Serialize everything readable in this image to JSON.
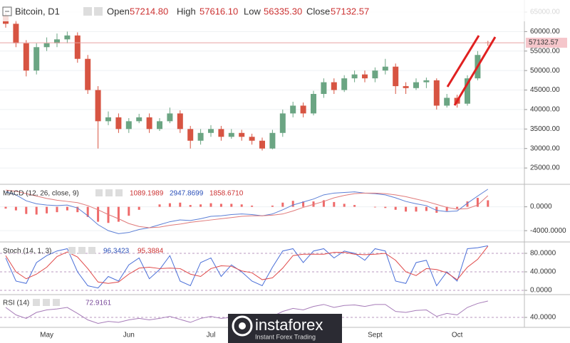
{
  "chart_data": [
    {
      "type": "candlestick",
      "title": "Bitcoin, D1",
      "ohlc": [
        {
          "name": "Open",
          "label": "57214.80"
        },
        {
          "name": "High",
          "label": "57616.10"
        },
        {
          "name": "Low",
          "label": "56335.30"
        },
        {
          "name": "Close",
          "label": "57132.57"
        }
      ],
      "last_label": "57132.57",
      "categories": [
        null,
        null,
        null,
        null,
        "May",
        null,
        null,
        null,
        null,
        null,
        null,
        null,
        "Jun",
        null,
        null,
        null,
        null,
        null,
        null,
        null,
        "Jul",
        null,
        null,
        null,
        null,
        null,
        null,
        null,
        null,
        null,
        null,
        null,
        null,
        null,
        null,
        null,
        "Sept",
        null,
        null,
        null,
        null,
        null,
        null,
        null,
        "Oct",
        null,
        null,
        null
      ],
      "open": [
        64000,
        62000,
        57000,
        50000,
        56000,
        57000,
        58000,
        59000,
        53000,
        45000,
        37000,
        38000,
        35000,
        37000,
        38000,
        35000,
        37000,
        39000,
        35000,
        32000,
        34000,
        35000,
        33000,
        34000,
        33000,
        32000,
        30000,
        34000,
        39000,
        41000,
        39000,
        44000,
        47000,
        45000,
        48000,
        49000,
        48000,
        50000,
        51000,
        46000,
        45500,
        47000,
        47500,
        41000,
        43000,
        41500,
        48000,
        57214.8
      ],
      "high": [
        64800,
        63000,
        57800,
        57000,
        58500,
        59500,
        60000,
        59800,
        54000,
        46000,
        39500,
        39000,
        37800,
        38900,
        39000,
        37800,
        40500,
        39800,
        35800,
        35000,
        36000,
        35800,
        35000,
        34800,
        33800,
        32800,
        34800,
        40000,
        42000,
        41800,
        44800,
        48000,
        48000,
        48800,
        50000,
        50000,
        50800,
        53000,
        51800,
        47000,
        48000,
        48200,
        48000,
        44000,
        43800,
        48800,
        55000,
        57616.1
      ],
      "low": [
        61000,
        56000,
        48500,
        49000,
        55000,
        56000,
        57000,
        52000,
        44000,
        30000,
        36000,
        34000,
        34000,
        36500,
        34000,
        34500,
        36500,
        34000,
        30000,
        31000,
        33000,
        32000,
        32500,
        32000,
        31000,
        29500,
        29800,
        33000,
        38000,
        38000,
        38500,
        43000,
        44000,
        44500,
        47000,
        47000,
        47000,
        49000,
        44000,
        44000,
        45000,
        45500,
        40000,
        40500,
        40500,
        41000,
        47500,
        56335.3
      ],
      "close": [
        62000,
        57000,
        50000,
        56000,
        57000,
        58000,
        59000,
        53000,
        45000,
        37000,
        38000,
        35000,
        37000,
        38000,
        35000,
        37000,
        39000,
        35000,
        32000,
        34000,
        35000,
        33000,
        34000,
        33000,
        32000,
        30000,
        34000,
        39000,
        41000,
        39000,
        44000,
        47000,
        45000,
        48000,
        49000,
        48000,
        50000,
        51000,
        46000,
        45500,
        47000,
        47500,
        41000,
        43000,
        41500,
        48000,
        54000,
        57132.57
      ],
      "up_color": "#6ba583",
      "down_color": "#d75442",
      "ylim": [
        21000,
        68100
      ],
      "yticks": [
        {
          "value": 25000,
          "label": "25000.00"
        },
        {
          "value": 30000,
          "label": "30000.00"
        },
        {
          "value": 35000,
          "label": "35000.00"
        },
        {
          "value": 40000,
          "label": "40000.00"
        },
        {
          "value": 45000,
          "label": "45000.00"
        },
        {
          "value": 50000,
          "label": "50000.00"
        },
        {
          "value": 55000,
          "label": "55000.00"
        },
        {
          "value": 60000,
          "label": "60000.00"
        },
        {
          "value": 65000,
          "label": "65000.00"
        }
      ],
      "grid": true
    },
    {
      "type": "line",
      "title": "MACD (12, 26, close, 9)",
      "series": [
        {
          "style": "histogram",
          "color": "#ef6a6a",
          "legend_label": "1089.1989",
          "values": [
            -300,
            -600,
            -1200,
            -1300,
            -1100,
            -900,
            -600,
            -900,
            -1700,
            -2500,
            -2700,
            -2500,
            -1500,
            -500,
            0,
            400,
            600,
            700,
            300,
            400,
            600,
            500,
            500,
            400,
            200,
            0,
            200,
            700,
            1000,
            900,
            900,
            1100,
            800,
            500,
            300,
            0,
            -100,
            -200,
            -500,
            -800,
            -800,
            -700,
            -1000,
            -700,
            -300,
            900,
            1500,
            1089.1989
          ]
        },
        {
          "style": "line",
          "color": "#5b7fd6",
          "legend_label": "2947.8699",
          "values": [
            2500,
            2000,
            1000,
            500,
            300,
            200,
            300,
            -200,
            -1500,
            -3000,
            -4000,
            -4500,
            -4300,
            -3800,
            -3500,
            -3000,
            -2500,
            -2200,
            -2300,
            -2000,
            -1600,
            -1500,
            -1300,
            -1200,
            -1300,
            -1500,
            -1200,
            -500,
            300,
            800,
            1300,
            2000,
            2300,
            2400,
            2500,
            2300,
            2200,
            2000,
            1500,
            900,
            500,
            200,
            -600,
            -800,
            -700,
            600,
            1800,
            2947.8699
          ]
        },
        {
          "style": "line",
          "color": "#e07a7a",
          "legend_label": "1858.6710",
          "values": [
            2800,
            2600,
            2200,
            1800,
            1400,
            1100,
            900,
            700,
            200,
            -500,
            -1300,
            -2000,
            -2800,
            -3300,
            -3500,
            -3400,
            -3100,
            -2900,
            -2600,
            -2400,
            -2200,
            -2000,
            -1800,
            -1600,
            -1500,
            -1500,
            -1400,
            -1200,
            -700,
            -100,
            400,
            900,
            1500,
            1900,
            2200,
            2300,
            2300,
            2200,
            2000,
            1700,
            1300,
            900,
            400,
            -100,
            -400,
            -300,
            300,
            1858.671
          ]
        }
      ],
      "ylim": [
        -5650,
        3530
      ],
      "yticks": [
        {
          "value": -4000,
          "label": "-4000.0000"
        },
        {
          "value": 0,
          "label": "0.0000"
        }
      ]
    },
    {
      "type": "line",
      "title": "Stoch (14, 1, 3)",
      "band": [
        20,
        80
      ],
      "band_color": "#d3aed6",
      "series": [
        {
          "style": "line",
          "color": "#4a6fd8",
          "legend_label": "96.3423",
          "values": [
            70,
            20,
            15,
            60,
            75,
            85,
            90,
            40,
            10,
            5,
            30,
            20,
            55,
            70,
            25,
            45,
            75,
            20,
            10,
            60,
            70,
            30,
            55,
            40,
            20,
            10,
            50,
            85,
            90,
            60,
            85,
            90,
            70,
            85,
            80,
            65,
            90,
            85,
            20,
            15,
            60,
            65,
            10,
            40,
            20,
            90,
            92,
            96.3423
          ]
        },
        {
          "style": "line",
          "color": "#e04848",
          "legend_label": "95.3884",
          "values": [
            75,
            40,
            25,
            35,
            50,
            73,
            83,
            72,
            47,
            18,
            15,
            18,
            35,
            48,
            50,
            47,
            48,
            47,
            35,
            30,
            47,
            53,
            52,
            42,
            38,
            23,
            27,
            48,
            75,
            78,
            78,
            78,
            82,
            82,
            78,
            77,
            78,
            80,
            65,
            40,
            32,
            47,
            45,
            38,
            23,
            50,
            67,
            95.3884
          ]
        }
      ],
      "ylim": [
        -7.7,
        101.5
      ],
      "yticks": [
        {
          "value": 0,
          "label": "0.0000"
        },
        {
          "value": 40,
          "label": "40.0000"
        },
        {
          "value": 80,
          "label": "80.0000"
        }
      ]
    },
    {
      "type": "line",
      "title": "RSI (14)",
      "band": [
        30,
        70
      ],
      "band_color": "#ecdcef",
      "series": [
        {
          "style": "line",
          "color": "#a67bb8",
          "legend_label": "72.9161",
          "values": [
            60,
            45,
            38,
            50,
            55,
            57,
            60,
            48,
            35,
            28,
            32,
            30,
            35,
            38,
            35,
            38,
            42,
            36,
            30,
            38,
            42,
            38,
            40,
            38,
            36,
            32,
            42,
            52,
            58,
            55,
            62,
            66,
            60,
            64,
            65,
            62,
            66,
            66,
            52,
            50,
            54,
            55,
            42,
            48,
            45,
            60,
            68,
            72.9161
          ]
        }
      ],
      "ylim": [
        22.9,
        82.9
      ],
      "yticks": [
        {
          "value": 40,
          "label": "40.0000"
        }
      ]
    }
  ],
  "watermark": {
    "name": "instaforex",
    "tagline": "Instant Forex Trading"
  }
}
